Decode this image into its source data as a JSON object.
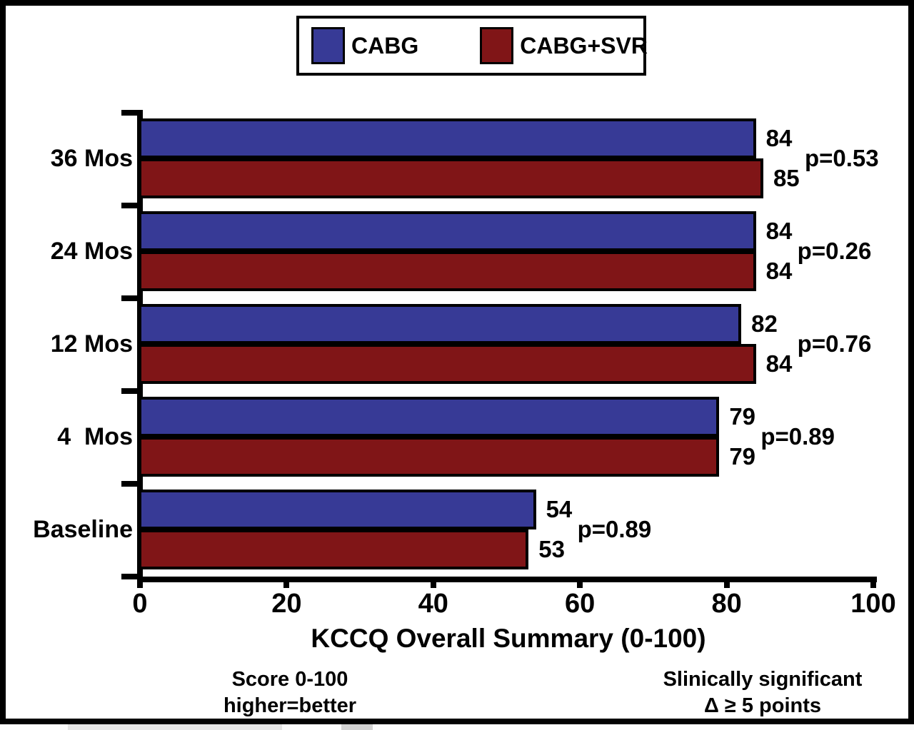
{
  "legend": {
    "items": [
      {
        "label": "CABG",
        "color": "#373a96"
      },
      {
        "label": "CABG+SVR",
        "color": "#801517"
      }
    ]
  },
  "chart_data": {
    "type": "bar",
    "orientation": "horizontal",
    "title": "",
    "xlabel": "KCCQ Overall Summary (0-100)",
    "ylabel": "",
    "xlim": [
      0,
      100
    ],
    "x_ticks": [
      0,
      20,
      40,
      60,
      80,
      100
    ],
    "grid": false,
    "legend_position": "top-center",
    "categories": [
      "36 Mos",
      "24 Mos",
      "12 Mos",
      "4  Mos",
      "Baseline"
    ],
    "series": [
      {
        "name": "CABG",
        "color": "#373a96",
        "values": [
          84,
          84,
          82,
          79,
          54
        ]
      },
      {
        "name": "CABG+SVR",
        "color": "#801517",
        "values": [
          85,
          84,
          84,
          79,
          53
        ]
      }
    ],
    "p_values": [
      "p=0.53",
      "p=0.26",
      "p=0.76",
      "p=0.89",
      "p=0.89"
    ],
    "bar_value_labels": true
  },
  "footnotes": {
    "left": {
      "line1": "Score 0-100",
      "line2": "higher=better"
    },
    "right": {
      "line1": "Slinically significant",
      "line2": "Δ ≥ 5 points"
    }
  }
}
